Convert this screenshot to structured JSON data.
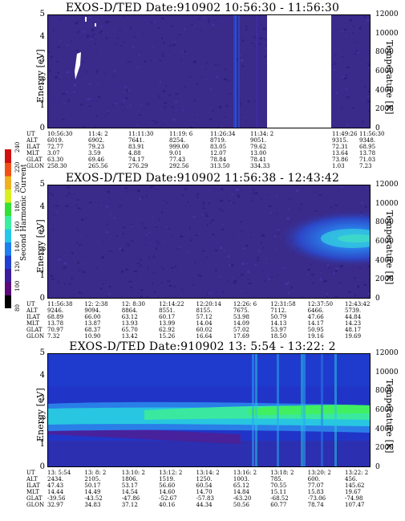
{
  "colorbar": {
    "label": "Second Harmonic Current",
    "ticks": [
      "80",
      "100",
      "120",
      "140",
      "160",
      "180",
      "200",
      "220",
      "240"
    ],
    "colors": [
      "#000000",
      "#5a0a7a",
      "#3b1c9c",
      "#1f3fd0",
      "#1e7ff0",
      "#25c7e8",
      "#3af0a0",
      "#33e033",
      "#d8f020",
      "#f0b020",
      "#f05018",
      "#d01010"
    ]
  },
  "chart_data": [
    {
      "type": "heatmap",
      "title": "EXOS-D/TED   Date:910902   10:56:30 - 11:56:30",
      "ylabel": "Energy [eV]",
      "y2label": "Temperature [K]",
      "ylim": [
        0,
        5
      ],
      "y2lim": [
        0,
        12000
      ],
      "yticks": [
        "0",
        "1",
        "2",
        "3",
        "4",
        "5"
      ],
      "y2ticks": [
        "0",
        "2000",
        "4000",
        "6000",
        "8000",
        "10000",
        "12000"
      ],
      "data_gap": [
        "11:34:2",
        "11:49:26"
      ],
      "rows": [
        {
          "label": "UT",
          "values": [
            "10:56:30",
            "11:4: 2",
            "11:11:30",
            "11:19: 6",
            "11:26:34",
            "11:34: 2",
            "11:49:26",
            "11:56:30"
          ]
        },
        {
          "label": "ALT",
          "values": [
            "6019.",
            "6902.",
            "7641.",
            "8254.",
            "8719.",
            "9051.",
            "9315.",
            "9348."
          ]
        },
        {
          "label": "ILAT",
          "values": [
            "72.77",
            "79.23",
            "83.91",
            "999.00",
            "83.05",
            "79.62",
            "72.31",
            "68.95"
          ]
        },
        {
          "label": "MLT",
          "values": [
            "3.07",
            "3.59",
            "4.88",
            "9.01",
            "12.07",
            "13.00",
            "13.64",
            "13.78"
          ]
        },
        {
          "label": "GLAT",
          "values": [
            "63.30",
            "69.46",
            "74.17",
            "77.43",
            "78.84",
            "78.41",
            "73.86",
            "71.03"
          ]
        },
        {
          "label": "GLON",
          "values": [
            "258.30",
            "265.56",
            "276.29",
            "292.56",
            "313.50",
            "334.33",
            "1.03",
            "7.23"
          ]
        }
      ]
    },
    {
      "type": "heatmap",
      "title": "EXOS-D/TED   Date:910902   11:56:38 - 12:43:42",
      "ylabel": "Energy [eV]",
      "y2label": "Temperature [K]",
      "ylim": [
        0,
        5
      ],
      "y2lim": [
        0,
        12000
      ],
      "yticks": [
        "0",
        "1",
        "2",
        "3",
        "4",
        "5"
      ],
      "y2ticks": [
        "0",
        "2000",
        "4000",
        "6000",
        "8000",
        "10000",
        "12000"
      ],
      "rows": [
        {
          "label": "UT",
          "values": [
            "11:56:38",
            "12: 2:38",
            "12: 8:30",
            "12:14:22",
            "12:20:14",
            "12:26: 6",
            "12:31:58",
            "12:37:50",
            "12:43:42"
          ]
        },
        {
          "label": "ALT",
          "values": [
            "9246.",
            "9094.",
            "8864.",
            "8551.",
            "8155.",
            "7675.",
            "7112.",
            "6466.",
            "5739."
          ]
        },
        {
          "label": "ILAT",
          "values": [
            "68.89",
            "66.00",
            "63.12",
            "60.17",
            "57.12",
            "53.98",
            "50.79",
            "47.66",
            "44.84"
          ]
        },
        {
          "label": "MLT",
          "values": [
            "13.78",
            "13.87",
            "13.93",
            "13.99",
            "14.04",
            "14.09",
            "14.13",
            "14.17",
            "14.23"
          ]
        },
        {
          "label": "GLAT",
          "values": [
            "70.97",
            "68.37",
            "65.70",
            "62.92",
            "60.02",
            "57.02",
            "53.97",
            "50.95",
            "48.17"
          ]
        },
        {
          "label": "GLON",
          "values": [
            "7.32",
            "10.90",
            "13.42",
            "15.26",
            "16.64",
            "17.69",
            "18.50",
            "19.16",
            "19.69"
          ]
        }
      ]
    },
    {
      "type": "heatmap",
      "title": "EXOS-D/TED   Date:910902   13: 5:54 - 13:22: 2",
      "ylabel": "Energy [eV]",
      "y2label": "Temperature [K]",
      "ylim": [
        0,
        5
      ],
      "y2lim": [
        0,
        12000
      ],
      "yticks": [
        "0",
        "1",
        "2",
        "3",
        "4",
        "5"
      ],
      "y2ticks": [
        "0",
        "2000",
        "4000",
        "6000",
        "8000",
        "10000",
        "12000"
      ],
      "rows": [
        {
          "label": "UT",
          "values": [
            "13: 5:54",
            "13: 8: 2",
            "13:10: 2",
            "13:12: 2",
            "13:14: 2",
            "13:16: 2",
            "13:18: 2",
            "13:20: 2",
            "13:22: 2"
          ]
        },
        {
          "label": "ALT",
          "values": [
            "2434.",
            "2105.",
            "1806.",
            "1519.",
            "1250.",
            "1003.",
            "785.",
            "600.",
            "456."
          ]
        },
        {
          "label": "ILAT",
          "values": [
            "47.43",
            "50.17",
            "53.17",
            "56.60",
            "60.54",
            "65.12",
            "70.55",
            "77.07",
            "145.62"
          ]
        },
        {
          "label": "MLT",
          "values": [
            "14.44",
            "14.49",
            "14.54",
            "14.60",
            "14.70",
            "14.84",
            "15.11",
            "15.83",
            "19.67"
          ]
        },
        {
          "label": "GLAT",
          "values": [
            "-39.56",
            "-43.52",
            "-47.86",
            "-52.67",
            "-57.83",
            "-63.20",
            "-68.52",
            "-73.06",
            "-74.98"
          ]
        },
        {
          "label": "GLON",
          "values": [
            "32.97",
            "34.83",
            "37.12",
            "40.16",
            "44.34",
            "50.56",
            "60.77",
            "78.74",
            "107.47"
          ]
        }
      ]
    }
  ]
}
